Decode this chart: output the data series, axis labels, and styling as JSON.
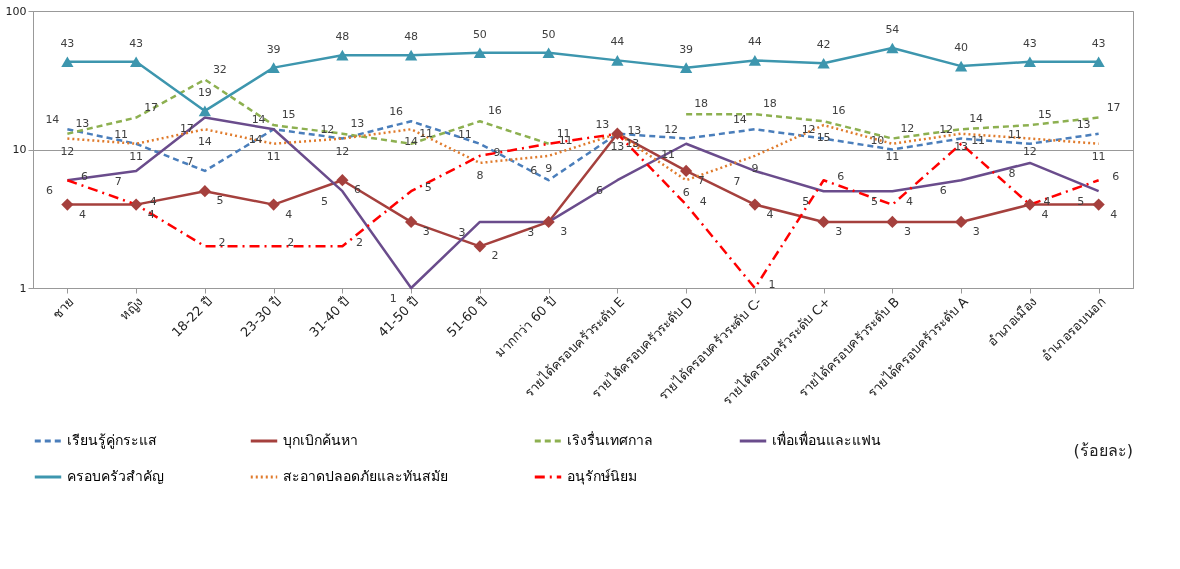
{
  "chart_data": {
    "type": "line",
    "categories": [
      "ชาย",
      "หญิง",
      "18-22 ปี",
      "23-30 ปี",
      "31-40 ปี",
      "41-50 ปี",
      "51-60 ปี",
      "มากกว่า 60 ปี",
      "รายได้ครอบครัวระดับ E",
      "รายได้ครอบครัวระดับ D",
      "รายได้ครอบครัวระดับ C-",
      "รายได้ครอบครัวระดับ C+",
      "รายได้ครอบครัวระดับ B",
      "รายได้ครอบครัวระดับ A",
      "อำเภอเมือง",
      "อำเภอรอบนอก"
    ],
    "series": [
      {
        "name": "เรียนรู้คู่กระแส",
        "color": "#4a7ebb",
        "line_style": "dashed",
        "marker": "none",
        "values": [
          14,
          11,
          7,
          14,
          12,
          16,
          11,
          6,
          13,
          12,
          14,
          12,
          10,
          12,
          11,
          13
        ]
      },
      {
        "name": "บุกเบิกค้นหา",
        "color": "#a5403d",
        "line_style": "solid",
        "marker": "diamond",
        "values": [
          4,
          4,
          5,
          4,
          6,
          3,
          2,
          3,
          13,
          7,
          4,
          3,
          3,
          3,
          4,
          4
        ]
      },
      {
        "name": "เริงรื่นเทศกาล",
        "color": "#8db050",
        "line_style": "dashed",
        "marker": "none",
        "values": [
          13,
          17,
          32,
          15,
          13,
          11,
          16,
          11,
          null,
          18,
          18,
          16,
          12,
          14,
          15,
          17
        ]
      },
      {
        "name": "เพื่อเพื่อนและแฟน",
        "color": "#6a4c8c",
        "line_style": "solid",
        "marker": "none",
        "values": [
          6,
          7,
          17,
          14,
          5,
          1,
          3,
          3,
          6,
          11,
          7,
          5,
          5,
          6,
          8,
          5
        ]
      },
      {
        "name": "ครอบครัวสำคัญ",
        "color": "#3d96ae",
        "line_style": "solid",
        "marker": "triangle",
        "values": [
          43,
          43,
          19,
          39,
          48,
          48,
          50,
          50,
          44,
          39,
          44,
          42,
          54,
          40,
          43,
          43
        ]
      },
      {
        "name": "สะอาดปลอดภัยและทันสมัย",
        "color": "#e07b2c",
        "line_style": "dotted",
        "marker": "none",
        "values": [
          12,
          11,
          14,
          11,
          12,
          14,
          8,
          9,
          13,
          6,
          9,
          15,
          11,
          13,
          12,
          11
        ]
      },
      {
        "name": "อนุรักษ์นิยม",
        "color": "#ff0000",
        "line_style": "dashdot",
        "marker": "none",
        "values": [
          6,
          4,
          2,
          2,
          2,
          5,
          9,
          11,
          13,
          4,
          1,
          6,
          4,
          11,
          4,
          6
        ]
      }
    ],
    "ylim": [
      1,
      100
    ],
    "yticks": [
      1,
      10,
      100
    ],
    "log": true,
    "grid": "y",
    "legend": "bottom",
    "data_labels": true,
    "annotations": [
      "(ร้อยละ)"
    ]
  }
}
